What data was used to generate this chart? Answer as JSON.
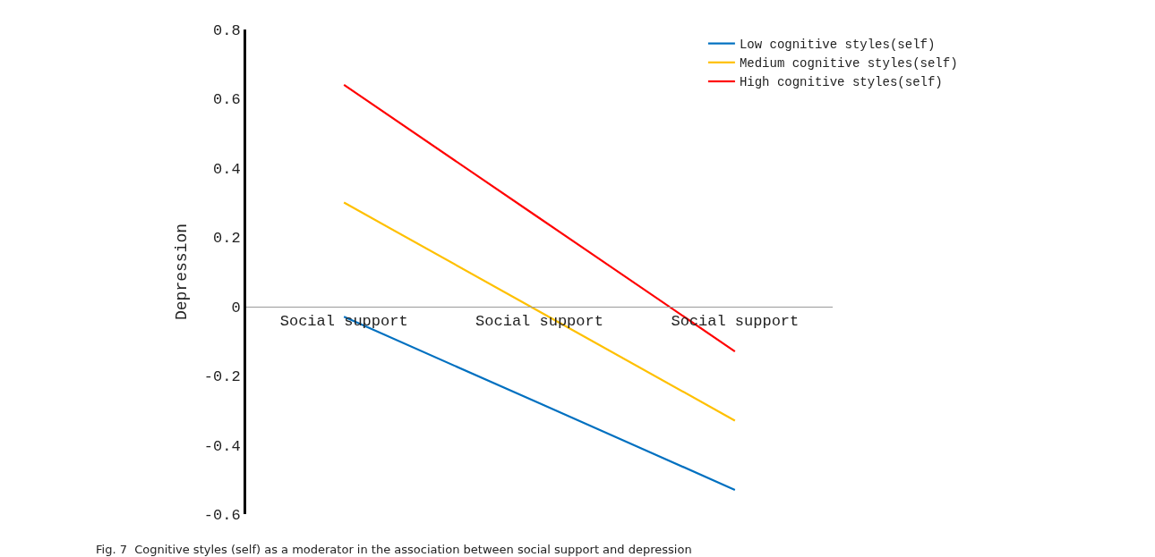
{
  "chart_data": {
    "type": "line",
    "ylabel": "Depression",
    "categories": [
      "Social support",
      "Social support",
      "Social support"
    ],
    "series": [
      {
        "name": "Low cognitive styles(self)",
        "color": "#0070c0",
        "values": [
          -0.03,
          -0.28,
          -0.53
        ]
      },
      {
        "name": "Medium cognitive styles(self)",
        "color": "#ffc000",
        "values": [
          0.3,
          -0.015,
          -0.33
        ]
      },
      {
        "name": "High cognitive styles(self)",
        "color": "#ff0000",
        "values": [
          0.64,
          0.255,
          -0.13
        ]
      }
    ],
    "ylim": [
      -0.6,
      0.8
    ],
    "yticks": [
      -0.6,
      -0.4,
      -0.2,
      0,
      0.2,
      0.4,
      0.6,
      0.8
    ],
    "legend": "top right",
    "marker": "none",
    "line_style": "solid",
    "annotations": [
      "Fig. 7  Cognitive styles (self) as a moderator in the association between social support and depression"
    ]
  }
}
